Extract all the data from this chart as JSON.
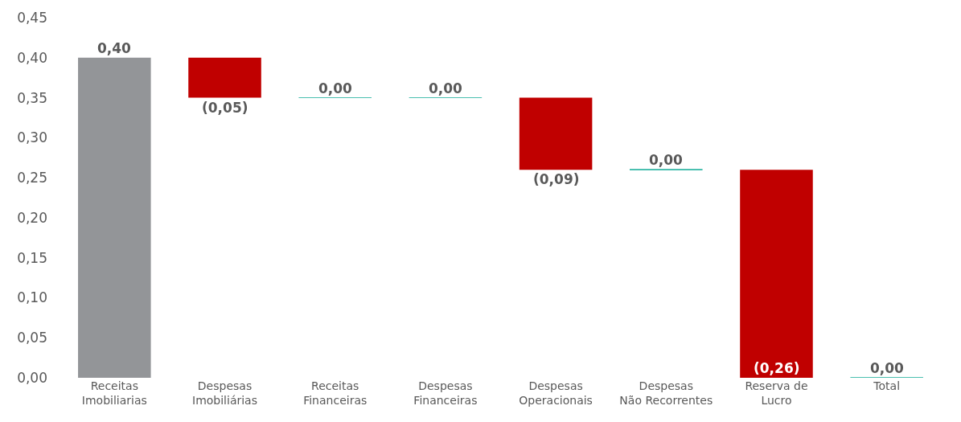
{
  "chart_data": {
    "type": "bar",
    "categories": [
      "Receitas\nImobiliarias",
      "Despesas\nImobiliárias",
      "Receitas\nFinanceiras",
      "Despesas\nFinanceiras",
      "Despesas\nOperacionais",
      "Despesas\nNão Recorrentes",
      "Reserva de\nLucro",
      "Total"
    ],
    "values": [
      0.4,
      -0.05,
      0.0,
      0.0,
      -0.09,
      0.0,
      -0.26,
      0.0
    ],
    "base": [
      0,
      0.4,
      0.35,
      0.35,
      0.35,
      0.26,
      0.26,
      0
    ],
    "colors": [
      "#939598",
      "#c00000",
      "#4bc0b0",
      "#4bc0b0",
      "#c00000",
      "#4bc0b0",
      "#c00000",
      "#4bc0b0"
    ],
    "value_labels": [
      "0,40",
      "(0,05)",
      "0,00",
      "0,00",
      "(0,09)",
      "0,00",
      "(0,26)",
      "0,00"
    ],
    "ylim": [
      0,
      0.45
    ],
    "yticks": [
      {
        "value": 0,
        "label": "0,00"
      },
      {
        "value": 0.05,
        "label": "0,05"
      },
      {
        "value": 0.1,
        "label": "0,10"
      },
      {
        "value": 0.15,
        "label": "0,15"
      },
      {
        "value": 0.2,
        "label": "0,20"
      },
      {
        "value": 0.25,
        "label": "0,25"
      },
      {
        "value": 0.3,
        "label": "0,30"
      },
      {
        "value": 0.35,
        "label": "0,35"
      },
      {
        "value": 0.4,
        "label": "0,40"
      },
      {
        "value": 0.45,
        "label": "0,45"
      }
    ],
    "relative": false
  }
}
